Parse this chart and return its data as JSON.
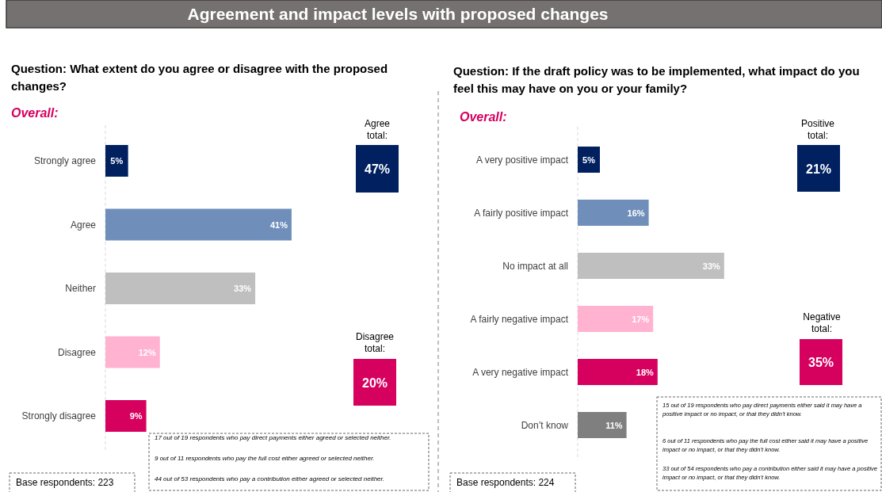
{
  "chart_data": [
    {
      "type": "bar",
      "orientation": "horizontal",
      "title": "Agreement and impact levels with proposed changes",
      "subtitle": "Question: What extent do you agree or disagree with the proposed changes?",
      "categories": [
        "Strongly agree",
        "Agree",
        "Neither",
        "Disagree",
        "Strongly disagree"
      ],
      "values": [
        5,
        41,
        33,
        12,
        9
      ],
      "value_labels": [
        "5%",
        "41%",
        "33%",
        "12%",
        "9%"
      ],
      "colors": [
        "#002060",
        "#6f8fba",
        "#bfbfbf",
        "#ffb3d1",
        "#d6005f"
      ],
      "annotations": [
        "Overall:",
        "Agree total:",
        "47%",
        "Disagree total:",
        "20%",
        "17 out of 19 respondents who pay direct payments either agreed or selected neither.",
        "9 out of 11 respondents who pay the full cost either agreed or selected neither.",
        "44 out of 53 respondents who pay a contribution either agreed or selected neither.",
        "Base respondents:  223"
      ]
    },
    {
      "type": "bar",
      "orientation": "horizontal",
      "subtitle": "Question: If the draft policy was to be implemented, what impact do you feel this may have on you or your family?",
      "categories": [
        "A very positive impact",
        "A fairly positive impact",
        "No impact at all",
        "A fairly negative impact",
        "A very negative impact",
        "Don’t know"
      ],
      "values": [
        5,
        16,
        33,
        17,
        18,
        11
      ],
      "value_labels": [
        "5%",
        "16%",
        "33%",
        "17%",
        "18%",
        "11%"
      ],
      "colors": [
        "#002060",
        "#6f8fba",
        "#bfbfbf",
        "#ffb3d1",
        "#d6005f",
        "#7f7f7f"
      ],
      "annotations": [
        "Overall:",
        "Positive total:",
        "21%",
        "Negative total:",
        "35%",
        "15 out of 19 respondents who pay direct payments either said it may have a positive impact or no impact, or that they didn’t know.",
        "6 out of 11 respondents who pay the full cost either said it may have a positive impact or no impact, or that they didn’t know.",
        "33 out of 54 respondents who pay a contribution either said it may have a positive impact or no impact, or that they didn’t know.",
        "Base respondents:  224"
      ]
    }
  ]
}
